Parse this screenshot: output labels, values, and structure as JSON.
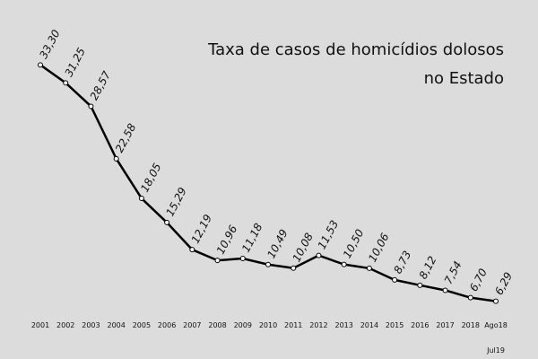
{
  "chart_data": {
    "type": "line",
    "title": "Taxa de casos de homicídios dolosos\nno Estado",
    "categories": [
      "2001",
      "2002",
      "2003",
      "2004",
      "2005",
      "2006",
      "2007",
      "2008",
      "2009",
      "2010",
      "2011",
      "2012",
      "2013",
      "2014",
      "2015",
      "2016",
      "2017",
      "2018",
      "Ago18"
    ],
    "annotations": [
      "Jul19"
    ],
    "series": [
      {
        "color": "#000000",
        "values": [
          33.3,
          31.25,
          28.57,
          22.58,
          18.05,
          15.29,
          12.19,
          10.96,
          11.18,
          10.49,
          10.08,
          11.53,
          10.5,
          10.06,
          8.73,
          8.12,
          7.54,
          6.7,
          6.29
        ],
        "value_labels": [
          "33,30",
          "31,25",
          "28,57",
          "22,58",
          "18,05",
          "15,29",
          "12,19",
          "10,96",
          "11,18",
          "10,49",
          "10,08",
          "11,53",
          "10,50",
          "10,06",
          "8,73",
          "8,12",
          "7,54",
          "6,70",
          "6,29"
        ]
      }
    ],
    "ylim": [
      0,
      36
    ]
  }
}
